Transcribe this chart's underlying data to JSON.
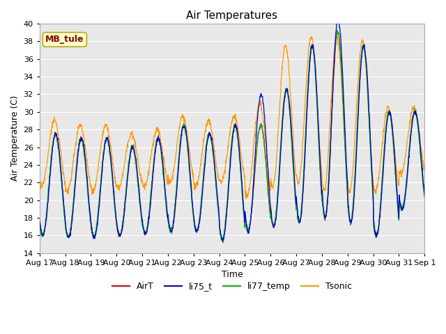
{
  "title": "Air Temperatures",
  "xlabel": "Time",
  "ylabel": "Air Temperature (C)",
  "ylim": [
    14,
    40
  ],
  "yticks": [
    14,
    16,
    18,
    20,
    22,
    24,
    26,
    28,
    30,
    32,
    34,
    36,
    38,
    40
  ],
  "colors": {
    "AirT": "#dd0000",
    "li75_t": "#0000dd",
    "li77_temp": "#00bb00",
    "Tsonic": "#ff9900"
  },
  "legend_labels": [
    "AirT",
    "li75_t",
    "li77_temp",
    "Tsonic"
  ],
  "annotation_text": "MB_tule",
  "annotation_color": "#880000",
  "annotation_bg": "#ffffcc",
  "annotation_border": "#bbaa00",
  "bg_color": "#e8e8e8",
  "grid_color": "#ffffff",
  "n_days": 15,
  "start_day": 17,
  "core_peaks": [
    27.5,
    27.0,
    27.0,
    26.0,
    27.0,
    28.5,
    27.5,
    28.5,
    28.5,
    32.5,
    37.5,
    39.0,
    37.5,
    30.0,
    30.0
  ],
  "core_troughs": [
    16.0,
    15.8,
    15.8,
    16.0,
    16.2,
    16.5,
    16.5,
    15.5,
    16.5,
    17.0,
    17.5,
    18.0,
    17.5,
    16.0,
    19.0
  ],
  "li75_extra_peaks": [
    0,
    0,
    0,
    0,
    0,
    0,
    0,
    0,
    3.5,
    0,
    0,
    1.5,
    0,
    0,
    0
  ],
  "tsonic_peaks": [
    29.0,
    28.5,
    28.5,
    27.5,
    28.0,
    29.5,
    29.0,
    29.5,
    31.0,
    37.5,
    38.5,
    38.5,
    38.0,
    30.5,
    30.5
  ],
  "tsonic_troughs": [
    21.5,
    21.0,
    21.0,
    21.5,
    21.5,
    22.0,
    21.5,
    22.0,
    20.5,
    21.5,
    22.0,
    21.0,
    21.0,
    21.0,
    23.0
  ],
  "figsize": [
    6.4,
    4.8
  ],
  "dpi": 100,
  "font_family": "DejaVu Sans",
  "tick_fontsize": 8,
  "title_fontsize": 11,
  "label_fontsize": 9
}
